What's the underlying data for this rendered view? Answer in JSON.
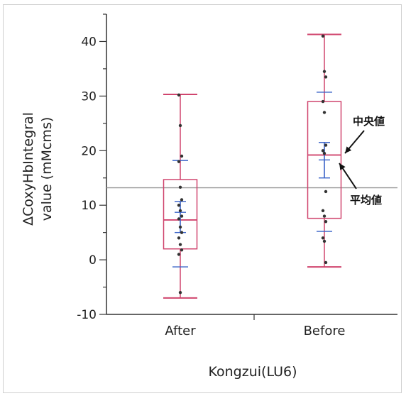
{
  "chart_data": {
    "type": "boxplot",
    "title": "",
    "xlabel": "Kongzui(LU6)",
    "ylabel_line1": "ΔCoxyHbIntegral",
    "ylabel_line2": "value (mMcms)",
    "ylim": [
      -10,
      45
    ],
    "yticks": [
      -10,
      0,
      10,
      20,
      30,
      40
    ],
    "categories": [
      "After",
      "Before"
    ],
    "reference_line": 13.2,
    "boxes": [
      {
        "category": "After",
        "whisker_low": -7,
        "q1": 2,
        "median": 7.3,
        "q3": 14.7,
        "whisker_high": 30.3,
        "mean": 8.7,
        "mean_ci": [
          5.0,
          10.7
        ],
        "std_bar": [
          -1.3,
          18.2
        ],
        "points": [
          30.2,
          24.6,
          19.0,
          18.0,
          13.3,
          11.0,
          10.0,
          9.0,
          8.0,
          7.5,
          6.0,
          5.0,
          4.0,
          2.8,
          1.8,
          1.0,
          -6.0
        ]
      },
      {
        "category": "Before",
        "whisker_low": -1.3,
        "q1": 7.6,
        "median": 19.2,
        "q3": 29.0,
        "whisker_high": 41.3,
        "mean": 18.3,
        "mean_ci": [
          15.0,
          21.5
        ],
        "std_bar": [
          5.2,
          30.7
        ],
        "points": [
          41.0,
          34.5,
          33.5,
          29.0,
          27.0,
          21.0,
          20.0,
          19.5,
          12.5,
          9.0,
          8.0,
          7.0,
          4.0,
          3.4,
          -0.5
        ]
      }
    ],
    "annotations": {
      "median_label": "中央値",
      "mean_label": "平均値"
    },
    "colors": {
      "box": "#d0456e",
      "mean": "#3a63c8",
      "points": "#333333",
      "refline": "#999999",
      "axis": "#333333"
    }
  }
}
